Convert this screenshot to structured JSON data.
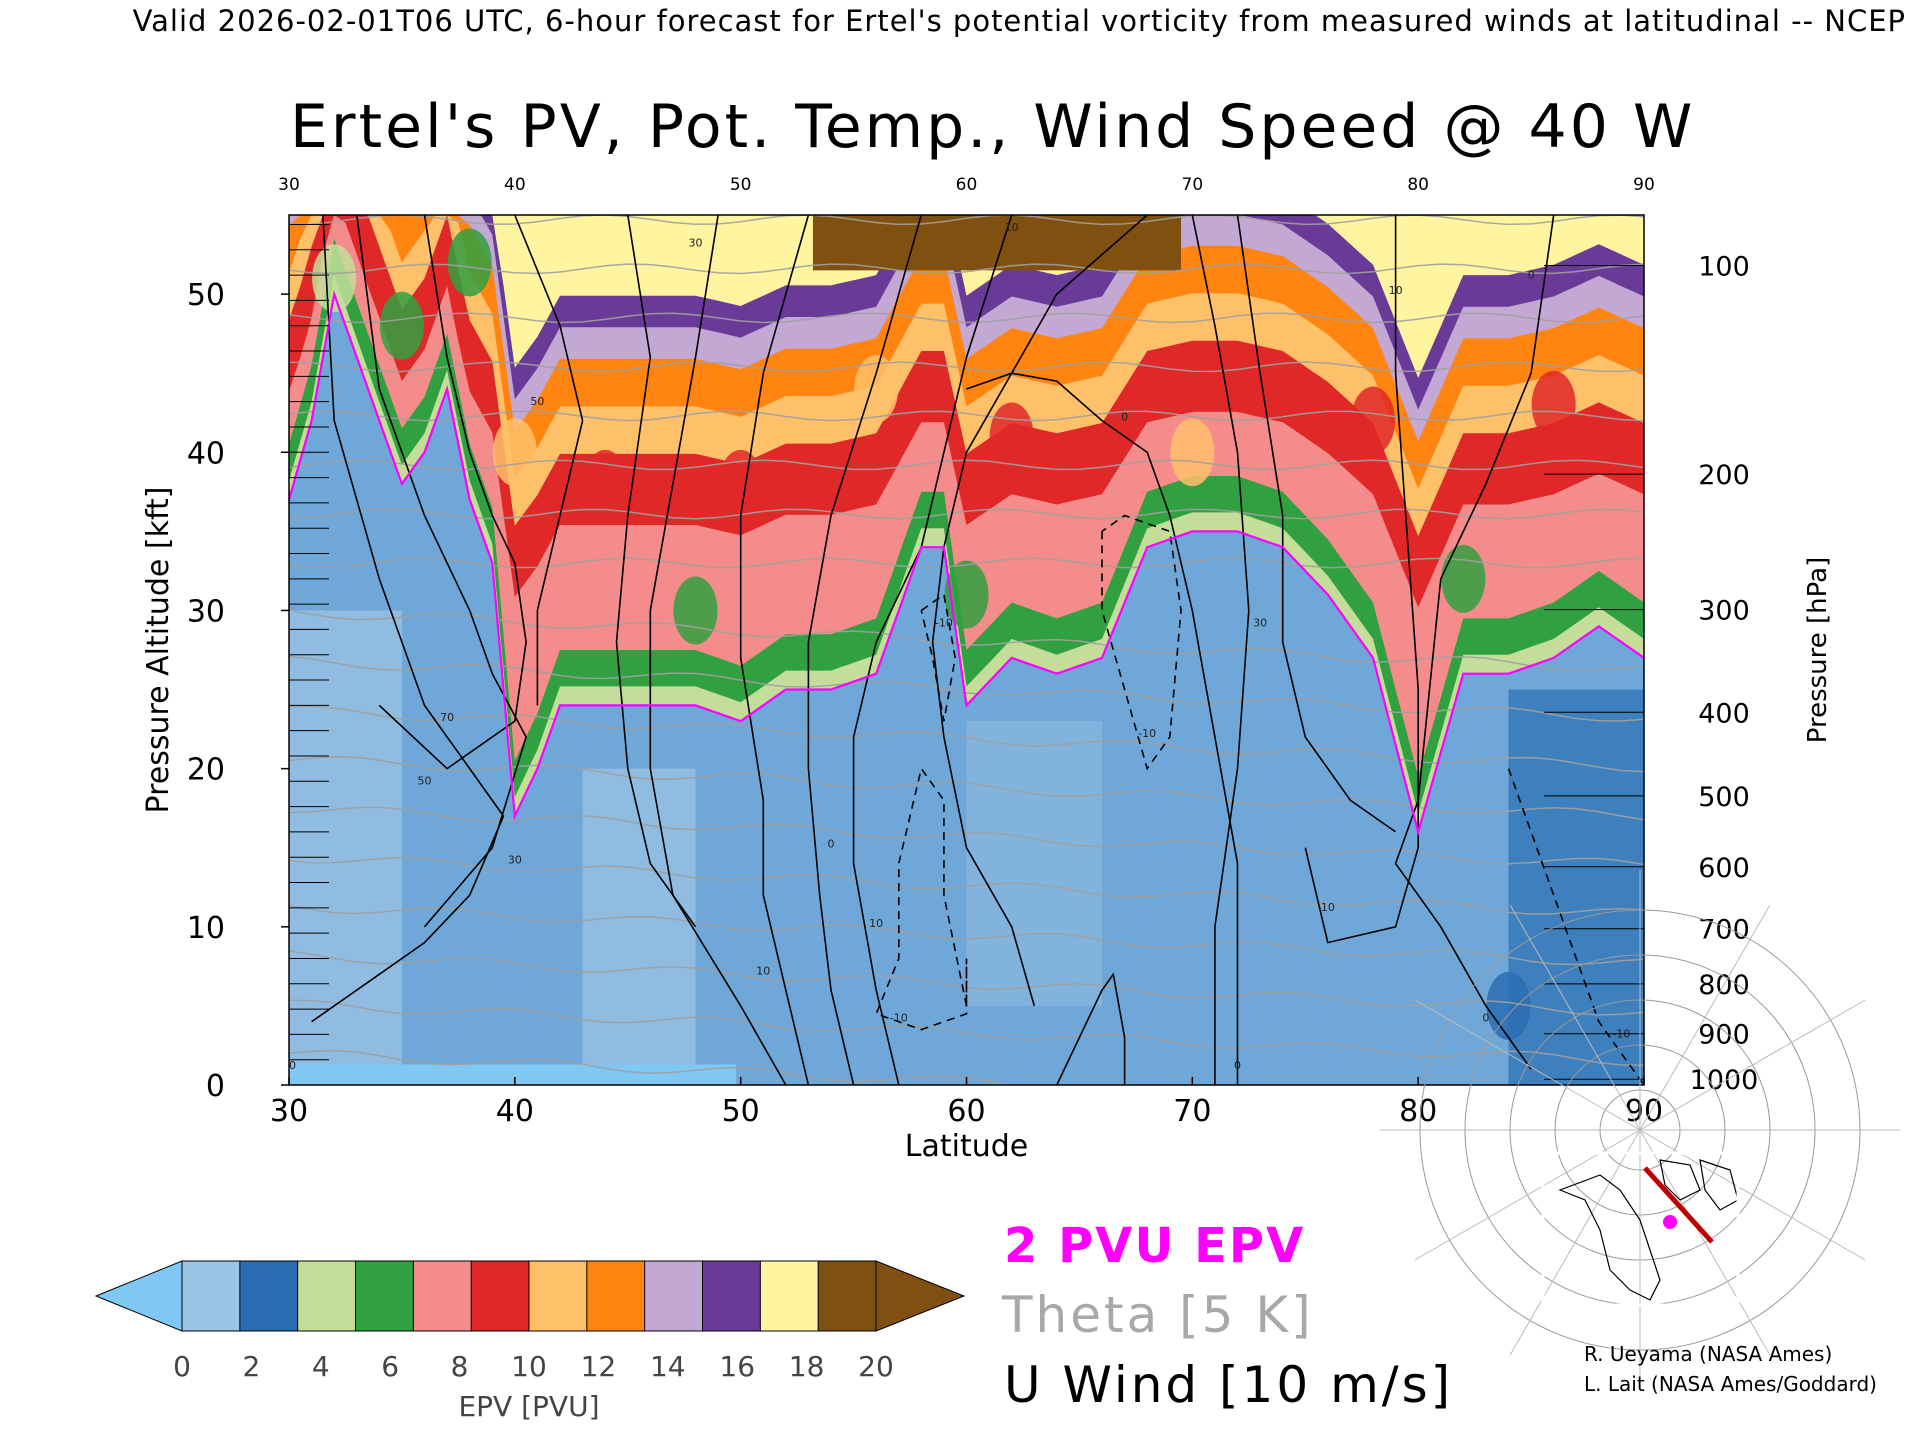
{
  "header": "Valid 2026-02-01T06 UTC, 6-hour forecast for Ertel's potential vorticity from measured winds at latitudinal -- NCEP",
  "chart_data": {
    "type": "heatmap",
    "title": "Ertel's PV, Pot. Temp., Wind Speed @ 40 W",
    "xlabel": "Latitude",
    "ylabel_left": "Pressure Altitude [kft]",
    "ylabel_right": "Pressure [hPa]",
    "xlim": [
      30,
      90
    ],
    "ylim": [
      0,
      55
    ],
    "x_ticks": [
      "30",
      "40",
      "50",
      "60",
      "70",
      "80",
      "90"
    ],
    "y_ticks": [
      "0",
      "10",
      "20",
      "30",
      "40",
      "50"
    ],
    "pressure_ticks": [
      "100",
      "200",
      "300",
      "400",
      "500",
      "600",
      "700",
      "800",
      "900",
      "1000"
    ],
    "colorbar": {
      "label": "EPV [PVU]",
      "ticks": [
        "0",
        "2",
        "4",
        "6",
        "8",
        "10",
        "12",
        "14",
        "16",
        "18",
        "20"
      ],
      "min": 0,
      "max": 20,
      "colors": [
        "#9cc4e4",
        "#2a6db2",
        "#c4de9a",
        "#30a040",
        "#f48c8c",
        "#e02828",
        "#ffc06a",
        "#ff8410",
        "#c4a8d4",
        "#6a3a98",
        "#fff4a0",
        "#805010"
      ],
      "extend_colors": [
        "#80c8f4",
        "#805010"
      ]
    },
    "tropopause_kft": [
      [
        30,
        37
      ],
      [
        31,
        42
      ],
      [
        32,
        50
      ],
      [
        33,
        46
      ],
      [
        34,
        42
      ],
      [
        35,
        38
      ],
      [
        36,
        40
      ],
      [
        37,
        44
      ],
      [
        38,
        37
      ],
      [
        39,
        33
      ],
      [
        40,
        17
      ],
      [
        41,
        20
      ],
      [
        42,
        24
      ],
      [
        44,
        24
      ],
      [
        46,
        24
      ],
      [
        48,
        24
      ],
      [
        50,
        23
      ],
      [
        52,
        25
      ],
      [
        54,
        25
      ],
      [
        56,
        26
      ],
      [
        57,
        30
      ],
      [
        58,
        34
      ],
      [
        59,
        34
      ],
      [
        60,
        24
      ],
      [
        62,
        27
      ],
      [
        64,
        26
      ],
      [
        66,
        27
      ],
      [
        68,
        34
      ],
      [
        70,
        35
      ],
      [
        72,
        35
      ],
      [
        74,
        34
      ],
      [
        76,
        31
      ],
      [
        78,
        27
      ],
      [
        80,
        16
      ],
      [
        82,
        26
      ],
      [
        84,
        26
      ],
      [
        86,
        27
      ],
      [
        88,
        29
      ],
      [
        90,
        27
      ]
    ],
    "pv_highlights": [
      {
        "x": 32,
        "y": 51,
        "pv": 4
      },
      {
        "x": 35,
        "y": 48,
        "pv": 5
      },
      {
        "x": 38,
        "y": 52,
        "pv": 5
      },
      {
        "x": 40,
        "y": 40,
        "pv": 11
      },
      {
        "x": 44,
        "y": 38,
        "pv": 9
      },
      {
        "x": 50,
        "y": 38,
        "pv": 9
      },
      {
        "x": 56,
        "y": 44,
        "pv": 10
      },
      {
        "x": 62,
        "y": 41,
        "pv": 9
      },
      {
        "x": 70,
        "y": 40,
        "pv": 10
      },
      {
        "x": 78,
        "y": 42,
        "pv": 9
      },
      {
        "x": 86,
        "y": 43,
        "pv": 9
      },
      {
        "x": 48,
        "y": 30,
        "pv": 5
      },
      {
        "x": 60,
        "y": 31,
        "pv": 6
      },
      {
        "x": 82,
        "y": 32,
        "pv": 6
      },
      {
        "x": 84,
        "y": 5,
        "pv": 3
      }
    ],
    "contour_labels": [
      {
        "x": 48,
        "y": 53,
        "text": "30"
      },
      {
        "x": 41,
        "y": 43,
        "text": "50"
      },
      {
        "x": 37,
        "y": 23,
        "text": "70"
      },
      {
        "x": 36,
        "y": 19,
        "text": "50"
      },
      {
        "x": 40,
        "y": 14,
        "text": "30"
      },
      {
        "x": 56,
        "y": 10,
        "text": "10"
      },
      {
        "x": 51,
        "y": 7,
        "text": "10"
      },
      {
        "x": 54,
        "y": 15,
        "text": "0"
      },
      {
        "x": 59,
        "y": 29,
        "text": "-10"
      },
      {
        "x": 57,
        "y": 4,
        "text": "-10"
      },
      {
        "x": 62,
        "y": 54,
        "text": "10"
      },
      {
        "x": 67,
        "y": 42,
        "text": "0"
      },
      {
        "x": 68,
        "y": 22,
        "text": "-10"
      },
      {
        "x": 72,
        "y": 1,
        "text": "0"
      },
      {
        "x": 73,
        "y": 29,
        "text": "30"
      },
      {
        "x": 76,
        "y": 11,
        "text": "10"
      },
      {
        "x": 79,
        "y": 50,
        "text": "10"
      },
      {
        "x": 85,
        "y": 51,
        "text": "0"
      },
      {
        "x": 83,
        "y": 4,
        "text": "0"
      },
      {
        "x": 89,
        "y": 3,
        "text": "-10"
      },
      {
        "x": 30,
        "y": 1,
        "text": "10"
      }
    ]
  },
  "legend": {
    "pvu": "2 PVU EPV",
    "theta": "Theta [5 K]",
    "wind": "U Wind [10 m/s]"
  },
  "credits": [
    "R. Ueyama (NASA Ames)",
    "L. Lait (NASA Ames/Goddard)"
  ]
}
